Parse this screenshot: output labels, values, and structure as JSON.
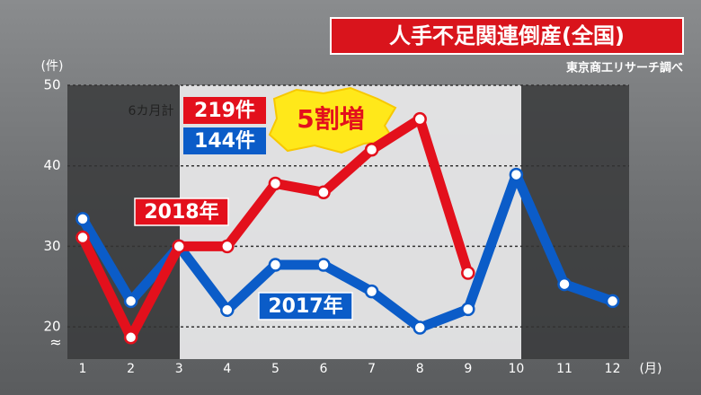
{
  "chart_data": {
    "type": "line",
    "title": "人手不足関連倒産(全国)",
    "source": "東京商工リサーチ調べ",
    "y_unit": "(件)",
    "x_unit": "(月)",
    "axis_break": "≈",
    "categories": [
      "1",
      "2",
      "3",
      "4",
      "5",
      "6",
      "7",
      "8",
      "9",
      "10",
      "11",
      "12"
    ],
    "series": [
      {
        "name": "2018年",
        "color": "#e3101c",
        "values": [
          31.1,
          18.7,
          30,
          30,
          37.8,
          36.7,
          42,
          45.8,
          26.7,
          null,
          null,
          null
        ]
      },
      {
        "name": "2017年",
        "color": "#0b5cc8",
        "values": [
          33.4,
          23.2,
          30,
          22.1,
          27.7,
          27.7,
          24.4,
          19.9,
          22.2,
          38.9,
          25.3,
          23.2
        ]
      }
    ],
    "ylim": [
      16,
      50
    ],
    "yticks": [
      20,
      30,
      40,
      50
    ],
    "grid": true,
    "total_label": "6カ月計",
    "totals": [
      "219件",
      "144件"
    ],
    "increase": "5割増"
  }
}
